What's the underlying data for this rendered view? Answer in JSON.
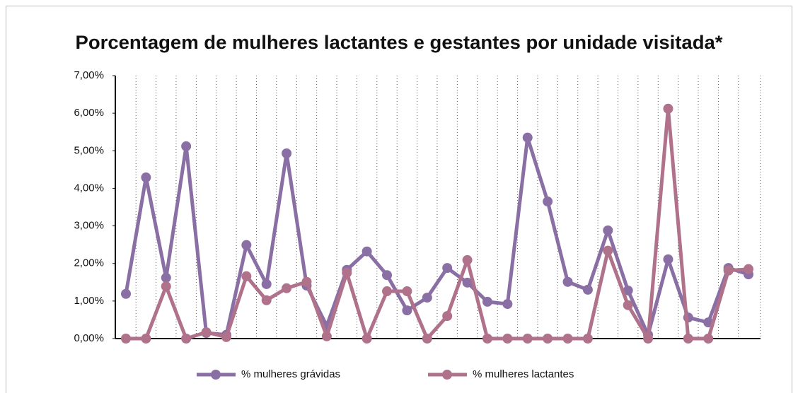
{
  "chart_data": {
    "type": "line",
    "title": "Porcentagem de mulheres lactantes e gestantes por unidade visitada*",
    "categories": [
      null,
      null,
      null,
      null,
      null,
      null,
      null,
      null,
      null,
      null,
      null,
      null,
      null,
      null,
      null,
      null,
      null,
      null,
      null,
      null,
      null,
      null,
      null,
      null,
      null,
      null,
      null,
      null,
      null,
      null,
      null,
      null
    ],
    "series": [
      {
        "name": "% mulheres grávidas",
        "color": "#8a6fa5",
        "values": [
          1.19,
          4.29,
          1.62,
          5.12,
          0.15,
          0.1,
          2.49,
          1.45,
          4.93,
          1.41,
          0.34,
          1.83,
          2.32,
          1.69,
          0.75,
          1.09,
          1.88,
          1.49,
          0.98,
          0.92,
          5.35,
          3.65,
          1.51,
          1.3,
          2.88,
          1.28,
          0.1,
          2.11,
          0.56,
          0.43,
          1.88,
          1.71
        ]
      },
      {
        "name": "% mulheres lactantes",
        "color": "#b0718b",
        "values": [
          0,
          0,
          1.39,
          0,
          0.17,
          0.04,
          1.66,
          1.02,
          1.34,
          1.51,
          0.06,
          1.75,
          0,
          1.26,
          1.26,
          0,
          0.6,
          2.09,
          0,
          0,
          0,
          0,
          0,
          0,
          2.34,
          0.89,
          0,
          6.12,
          0,
          0,
          1.81,
          1.85
        ]
      }
    ],
    "ylim": [
      0,
      7
    ],
    "yticks": [
      {
        "value": 0,
        "label": "0,00%"
      },
      {
        "value": 1,
        "label": "1,00%"
      },
      {
        "value": 2,
        "label": "2,00%"
      },
      {
        "value": 3,
        "label": "3,00%"
      },
      {
        "value": 4,
        "label": "4,00%"
      },
      {
        "value": 5,
        "label": "5,00%"
      },
      {
        "value": 6,
        "label": "6,00%"
      },
      {
        "value": 7,
        "label": "7,00%"
      }
    ],
    "legend": "bottom"
  }
}
